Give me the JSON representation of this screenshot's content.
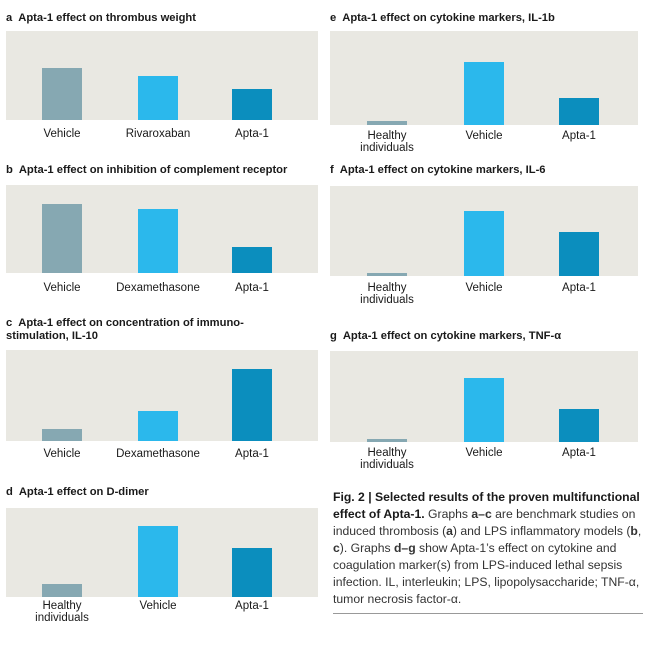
{
  "colors": {
    "vehicle": "#86a8b2",
    "treatment": "#2bb8ec",
    "apta": "#0b8ebe",
    "healthy": "#86a8b2",
    "plot_bg": "#e9e8e2"
  },
  "chart_data": [
    {
      "id": "a",
      "type": "bar",
      "letter": "a",
      "title": "Apta-1 effect on thrombus weight",
      "categories": [
        "Vehicle",
        "Rivaroxaban",
        "Apta-1"
      ],
      "values": [
        58,
        49,
        35
      ],
      "ylim": [
        0,
        100
      ],
      "bar_colors": [
        "vehicle",
        "treatment",
        "apta"
      ]
    },
    {
      "id": "b",
      "type": "bar",
      "letter": "b",
      "title": "Apta-1 effect on inhibition of complement receptor",
      "categories": [
        "Vehicle",
        "Dexamethasone",
        "Apta-1"
      ],
      "values": [
        79,
        73,
        30
      ],
      "ylim": [
        0,
        100
      ],
      "bar_colors": [
        "vehicle",
        "treatment",
        "apta"
      ]
    },
    {
      "id": "c",
      "type": "bar",
      "letter": "c",
      "title": "Apta-1 effect on concentration of immuno-",
      "title2": "stimulation, IL-10",
      "categories": [
        "Vehicle",
        "Dexamethasone",
        "Apta-1"
      ],
      "values": [
        13,
        33,
        79
      ],
      "ylim": [
        0,
        100
      ],
      "bar_colors": [
        "vehicle",
        "treatment",
        "apta"
      ]
    },
    {
      "id": "d",
      "type": "bar",
      "letter": "d",
      "title": "Apta-1 effect on D-dimer",
      "categories": [
        "Healthy\nindividuals",
        "Vehicle",
        "Apta-1"
      ],
      "values": [
        15,
        80,
        55
      ],
      "ylim": [
        0,
        100
      ],
      "bar_colors": [
        "healthy",
        "treatment",
        "apta"
      ]
    },
    {
      "id": "e",
      "type": "bar",
      "letter": "e",
      "title": "Apta-1 effect on cytokine markers, IL-1b",
      "categories": [
        "Healthy\nindividuals",
        "Vehicle",
        "Apta-1"
      ],
      "values": [
        4,
        67,
        29
      ],
      "ylim": [
        0,
        100
      ],
      "bar_colors": [
        "healthy",
        "treatment",
        "apta"
      ]
    },
    {
      "id": "f",
      "type": "bar",
      "letter": "f",
      "title": "Apta-1 effect on cytokine markers, IL-6",
      "categories": [
        "Healthy\nindividuals",
        "Vehicle",
        "Apta-1"
      ],
      "values": [
        3,
        72,
        49
      ],
      "ylim": [
        0,
        100
      ],
      "bar_colors": [
        "healthy",
        "treatment",
        "apta"
      ]
    },
    {
      "id": "g",
      "type": "bar",
      "letter": "g",
      "title": "Apta-1 effect on cytokine markers, TNF-α",
      "categories": [
        "Healthy\nindividuals",
        "Vehicle",
        "Apta-1"
      ],
      "values": [
        3,
        70,
        36
      ],
      "ylim": [
        0,
        100
      ],
      "bar_colors": [
        "healthy",
        "treatment",
        "apta"
      ]
    }
  ],
  "caption": {
    "head": "Fig. 2 | Selected results of the proven multifunctional effect of Apta-1.",
    "t1": " Graphs ",
    "b1": "a–c",
    "t2": " are benchmark studies on induced thrombosis (",
    "b2": "a",
    "t3": ") and LPS inflammatory models (",
    "b3": "b",
    "t4": ", ",
    "b4": "c",
    "t5": "). Graphs ",
    "b5": "d–g",
    "t6": " show Apta-1’s effect on cytokine and coagulation marker(s) from LPS-induced lethal sepsis infection. IL, interleukin; LPS, lipopolysaccharide; TNF-α, tumor necrosis factor-α."
  }
}
